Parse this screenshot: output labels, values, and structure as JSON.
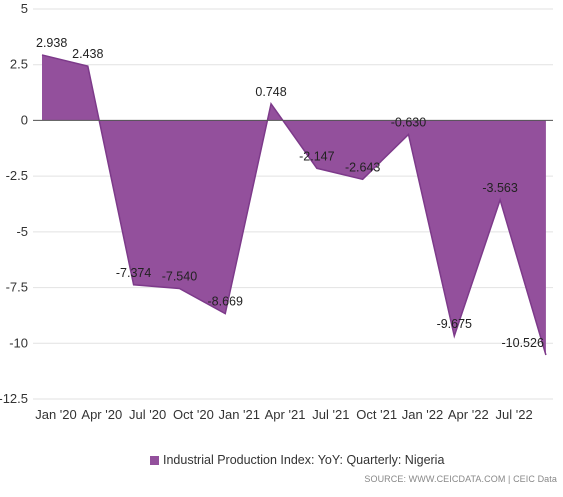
{
  "chart_data": {
    "type": "area",
    "x": [
      "2020-01",
      "2020-04",
      "2020-07",
      "2020-10",
      "2021-01",
      "2021-04",
      "2021-07",
      "2021-10",
      "2022-01",
      "2022-04",
      "2022-07",
      "2022-10"
    ],
    "series": [
      {
        "name": "Industrial Production Index: YoY: Quarterly: Nigeria",
        "values": [
          2.938,
          2.438,
          -7.374,
          -7.54,
          -8.669,
          0.748,
          -2.147,
          -2.643,
          -0.63,
          -9.675,
          -3.563,
          -10.526
        ],
        "labels": [
          "2.938",
          "2.438",
          "-7.374",
          "-7.540",
          "-8.669",
          "0.748",
          "-2.147",
          "-2.643",
          "-0.630",
          "-9.675",
          "-3.563",
          "-10.526"
        ]
      }
    ],
    "x_tick_labels": [
      "Jan '20",
      "Apr '20",
      "Jul '20",
      "Oct '20",
      "Jan '21",
      "Apr '21",
      "Jul '21",
      "Oct '21",
      "Jan '22",
      "Apr '22",
      "Jul '22"
    ],
    "y_ticks": [
      5,
      2.5,
      0,
      -2.5,
      -5,
      -7.5,
      -10,
      -12.5
    ],
    "y_tick_labels": [
      "5",
      "2.5",
      "0",
      "-2.5",
      "-5",
      "-7.5",
      "-10",
      "-12.5"
    ],
    "ylim": [
      -12.5,
      5
    ],
    "grid": true,
    "legend_position": "bottom",
    "colors": {
      "area": "#93509c",
      "line": "#7d3a8a"
    },
    "source_text": "SOURCE: WWW.CEICDATA.COM | CEIC Data"
  }
}
